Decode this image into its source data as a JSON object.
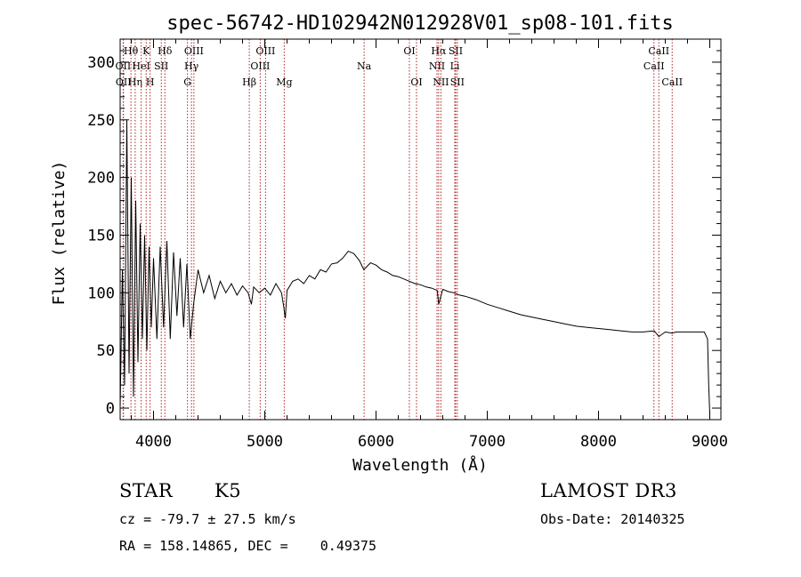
{
  "chart_data": {
    "type": "line",
    "title": "spec-56742-HD102942N012928V01_sp08-101.fits",
    "xlabel": "Wavelength (Å)",
    "ylabel": "Flux (relative)",
    "xlim": [
      3700,
      9100
    ],
    "ylim": [
      -10,
      320
    ],
    "xticks": [
      4000,
      5000,
      6000,
      7000,
      8000,
      9000
    ],
    "xtick_labels": [
      "4000",
      "5000",
      "6000",
      "7000",
      "8000",
      "9000"
    ],
    "yticks": [
      0,
      50,
      100,
      150,
      200,
      250,
      300
    ],
    "ytick_labels": [
      "0",
      "50",
      "100",
      "150",
      "200",
      "250",
      "300"
    ],
    "series": [
      {
        "name": "flux",
        "color": "#000000",
        "x": [
          3700,
          3720,
          3740,
          3760,
          3780,
          3800,
          3820,
          3840,
          3860,
          3880,
          3900,
          3920,
          3940,
          3960,
          3980,
          4000,
          4030,
          4060,
          4090,
          4120,
          4150,
          4180,
          4210,
          4240,
          4270,
          4300,
          4330,
          4360,
          4400,
          4450,
          4500,
          4550,
          4600,
          4650,
          4700,
          4750,
          4800,
          4850,
          4880,
          4900,
          4950,
          5000,
          5050,
          5100,
          5150,
          5170,
          5185,
          5200,
          5250,
          5300,
          5350,
          5400,
          5450,
          5500,
          5550,
          5600,
          5650,
          5700,
          5750,
          5800,
          5850,
          5890,
          5950,
          6000,
          6050,
          6100,
          6150,
          6200,
          6250,
          6300,
          6350,
          6400,
          6450,
          6500,
          6550,
          6563,
          6600,
          6650,
          6700,
          6750,
          6800,
          6900,
          7000,
          7100,
          7200,
          7300,
          7400,
          7500,
          7600,
          7700,
          7800,
          7900,
          8000,
          8100,
          8200,
          8300,
          8400,
          8500,
          8542,
          8600,
          8662,
          8700,
          8800,
          8900,
          8950,
          8980,
          8990,
          9000
        ],
        "y": [
          0,
          120,
          20,
          250,
          30,
          200,
          10,
          180,
          40,
          160,
          60,
          150,
          50,
          140,
          70,
          130,
          60,
          140,
          70,
          145,
          60,
          135,
          80,
          130,
          70,
          125,
          60,
          90,
          120,
          100,
          115,
          95,
          110,
          100,
          108,
          98,
          106,
          100,
          90,
          105,
          100,
          104,
          98,
          108,
          100,
          88,
          78,
          102,
          110,
          112,
          108,
          115,
          112,
          120,
          118,
          125,
          126,
          130,
          136,
          134,
          128,
          120,
          126,
          124,
          120,
          118,
          115,
          114,
          112,
          110,
          108,
          107,
          105,
          104,
          102,
          90,
          103,
          101,
          100,
          98,
          97,
          94,
          90,
          87,
          84,
          81,
          79,
          77,
          75,
          73,
          71,
          70,
          69,
          68,
          67,
          66,
          66,
          67,
          62,
          66,
          65,
          66,
          66,
          66,
          66,
          60,
          20,
          -5
        ]
      }
    ],
    "line_markers": [
      {
        "label": "Hθ",
        "x": 3797,
        "row": 0
      },
      {
        "label": "OII",
        "x": 3727,
        "row": 1
      },
      {
        "label": "OII",
        "x": 3730,
        "row": 2
      },
      {
        "label": "Hη",
        "x": 3835,
        "row": 2
      },
      {
        "label": "K",
        "x": 3934,
        "row": 0
      },
      {
        "label": "HeI",
        "x": 3889,
        "row": 1
      },
      {
        "label": "SII",
        "x": 4070,
        "row": 1
      },
      {
        "label": "H",
        "x": 3969,
        "row": 2
      },
      {
        "label": "Hδ",
        "x": 4102,
        "row": 0
      },
      {
        "label": "OIII",
        "x": 4363,
        "row": 0
      },
      {
        "label": "Hγ",
        "x": 4341,
        "row": 1
      },
      {
        "label": "G",
        "x": 4305,
        "row": 2
      },
      {
        "label": "OIII",
        "x": 5007,
        "row": 0
      },
      {
        "label": "OIII",
        "x": 4959,
        "row": 1
      },
      {
        "label": "Hβ",
        "x": 4861,
        "row": 2
      },
      {
        "label": "Mg",
        "x": 5175,
        "row": 2
      },
      {
        "label": "Na",
        "x": 5893,
        "row": 1
      },
      {
        "label": "OI",
        "x": 6300,
        "row": 0
      },
      {
        "label": "OI",
        "x": 6364,
        "row": 2
      },
      {
        "label": "Hα",
        "x": 6563,
        "row": 0
      },
      {
        "label": "SII",
        "x": 6716,
        "row": 0
      },
      {
        "label": "NII",
        "x": 6548,
        "row": 1
      },
      {
        "label": "Li",
        "x": 6708,
        "row": 1
      },
      {
        "label": "NII",
        "x": 6583,
        "row": 2
      },
      {
        "label": "SII",
        "x": 6731,
        "row": 2
      },
      {
        "label": "CaII",
        "x": 8542,
        "row": 0
      },
      {
        "label": "CaII",
        "x": 8498,
        "row": 1
      },
      {
        "label": "CaII",
        "x": 8662,
        "row": 2
      }
    ]
  },
  "info": {
    "class": "STAR",
    "subclass": "K5",
    "survey": "LAMOST DR3",
    "redshift": "cz = -79.7 ± 27.5 km/s",
    "obs_date": "Obs-Date: 20140325",
    "coords": "RA = 158.14865, DEC =    0.49375"
  }
}
